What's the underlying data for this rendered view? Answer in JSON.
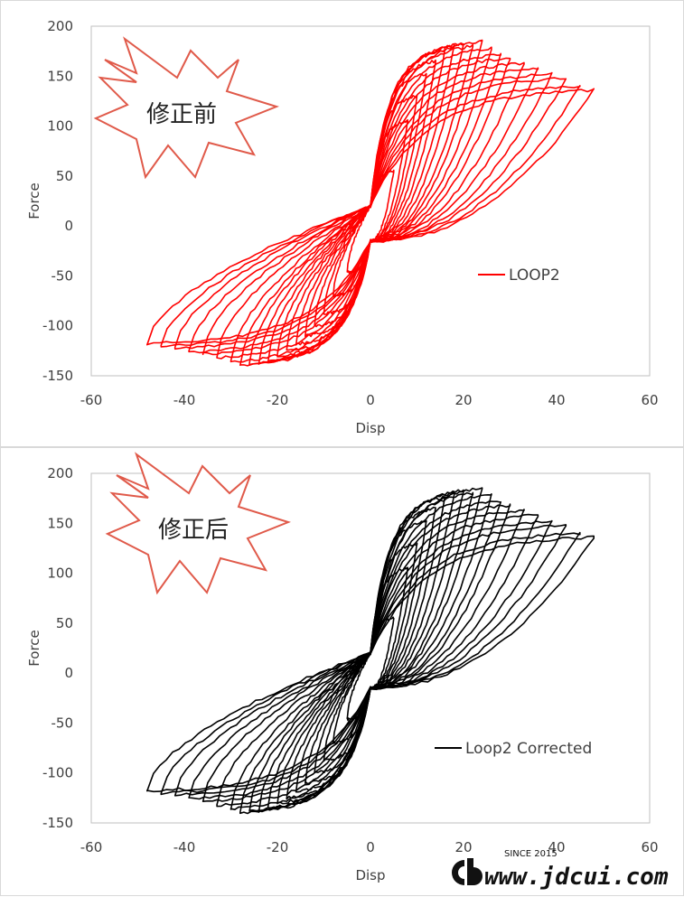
{
  "chart_data": [
    {
      "type": "line",
      "panel": "top",
      "xlabel": "Disp",
      "ylabel": "Force",
      "xlim": [
        -60,
        60
      ],
      "ylim": [
        -150,
        200
      ],
      "xticks": [
        -60,
        -40,
        -20,
        0,
        20,
        40,
        60
      ],
      "yticks": [
        -150,
        -100,
        -50,
        0,
        50,
        100,
        150,
        200
      ],
      "grid": false,
      "legend_position": "right-middle",
      "color": "#ff0000",
      "callout": "修正前",
      "series": [
        {
          "name": "LOOP2",
          "loops": [
            {
              "amp": 5,
              "peak_pos": 55,
              "peak_neg": -46
            },
            {
              "amp": 8,
              "peak_pos": 105,
              "peak_neg": -70
            },
            {
              "amp": 10,
              "peak_pos": 130,
              "peak_neg": -88
            },
            {
              "amp": 12,
              "peak_pos": 152,
              "peak_neg": -100
            },
            {
              "amp": 14,
              "peak_pos": 165,
              "peak_neg": -110
            },
            {
              "amp": 16,
              "peak_pos": 176,
              "peak_neg": -118
            },
            {
              "amp": 18,
              "peak_pos": 180,
              "peak_neg": -125
            },
            {
              "amp": 20,
              "peak_pos": 183,
              "peak_neg": -130
            },
            {
              "amp": 22,
              "peak_pos": 180,
              "peak_neg": -135
            },
            {
              "amp": 24,
              "peak_pos": 185,
              "peak_neg": -138
            },
            {
              "amp": 26,
              "peak_pos": 178,
              "peak_neg": -138
            },
            {
              "amp": 28,
              "peak_pos": 172,
              "peak_neg": -140
            },
            {
              "amp": 30,
              "peak_pos": 168,
              "peak_neg": -136
            },
            {
              "amp": 33,
              "peak_pos": 163,
              "peak_neg": -132
            },
            {
              "amp": 36,
              "peak_pos": 158,
              "peak_neg": -128
            },
            {
              "amp": 39,
              "peak_pos": 152,
              "peak_neg": -126
            },
            {
              "amp": 42,
              "peak_pos": 148,
              "peak_neg": -122
            },
            {
              "amp": 45,
              "peak_pos": 140,
              "peak_neg": -120
            },
            {
              "amp": 48,
              "peak_pos": 136,
              "peak_neg": -118
            }
          ]
        }
      ]
    },
    {
      "type": "line",
      "panel": "bottom",
      "xlabel": "Disp",
      "ylabel": "Force",
      "xlim": [
        -60,
        60
      ],
      "ylim": [
        -150,
        200
      ],
      "xticks": [
        -60,
        -40,
        -20,
        0,
        20,
        40,
        60
      ],
      "yticks": [
        -150,
        -100,
        -50,
        0,
        50,
        100,
        150,
        200
      ],
      "grid": false,
      "legend_position": "right-middle",
      "color": "#000000",
      "callout": "修正后",
      "series": [
        {
          "name": "Loop2 Corrected",
          "loops": [
            {
              "amp": 5,
              "peak_pos": 55,
              "peak_neg": -46
            },
            {
              "amp": 8,
              "peak_pos": 105,
              "peak_neg": -70
            },
            {
              "amp": 10,
              "peak_pos": 130,
              "peak_neg": -88
            },
            {
              "amp": 12,
              "peak_pos": 152,
              "peak_neg": -100
            },
            {
              "amp": 14,
              "peak_pos": 165,
              "peak_neg": -110
            },
            {
              "amp": 16,
              "peak_pos": 176,
              "peak_neg": -118
            },
            {
              "amp": 18,
              "peak_pos": 180,
              "peak_neg": -125
            },
            {
              "amp": 20,
              "peak_pos": 183,
              "peak_neg": -130
            },
            {
              "amp": 22,
              "peak_pos": 180,
              "peak_neg": -135
            },
            {
              "amp": 24,
              "peak_pos": 185,
              "peak_neg": -138
            },
            {
              "amp": 26,
              "peak_pos": 178,
              "peak_neg": -138
            },
            {
              "amp": 28,
              "peak_pos": 172,
              "peak_neg": -140
            },
            {
              "amp": 30,
              "peak_pos": 168,
              "peak_neg": -136
            },
            {
              "amp": 33,
              "peak_pos": 163,
              "peak_neg": -132
            },
            {
              "amp": 36,
              "peak_pos": 158,
              "peak_neg": -128
            },
            {
              "amp": 39,
              "peak_pos": 152,
              "peak_neg": -126
            },
            {
              "amp": 42,
              "peak_pos": 148,
              "peak_neg": -122
            },
            {
              "amp": 45,
              "peak_pos": 140,
              "peak_neg": -120
            },
            {
              "amp": 48,
              "peak_pos": 136,
              "peak_neg": -118
            }
          ]
        }
      ]
    }
  ],
  "watermark": {
    "since": "SINCE 2015",
    "url": "www.jdcui.com"
  }
}
